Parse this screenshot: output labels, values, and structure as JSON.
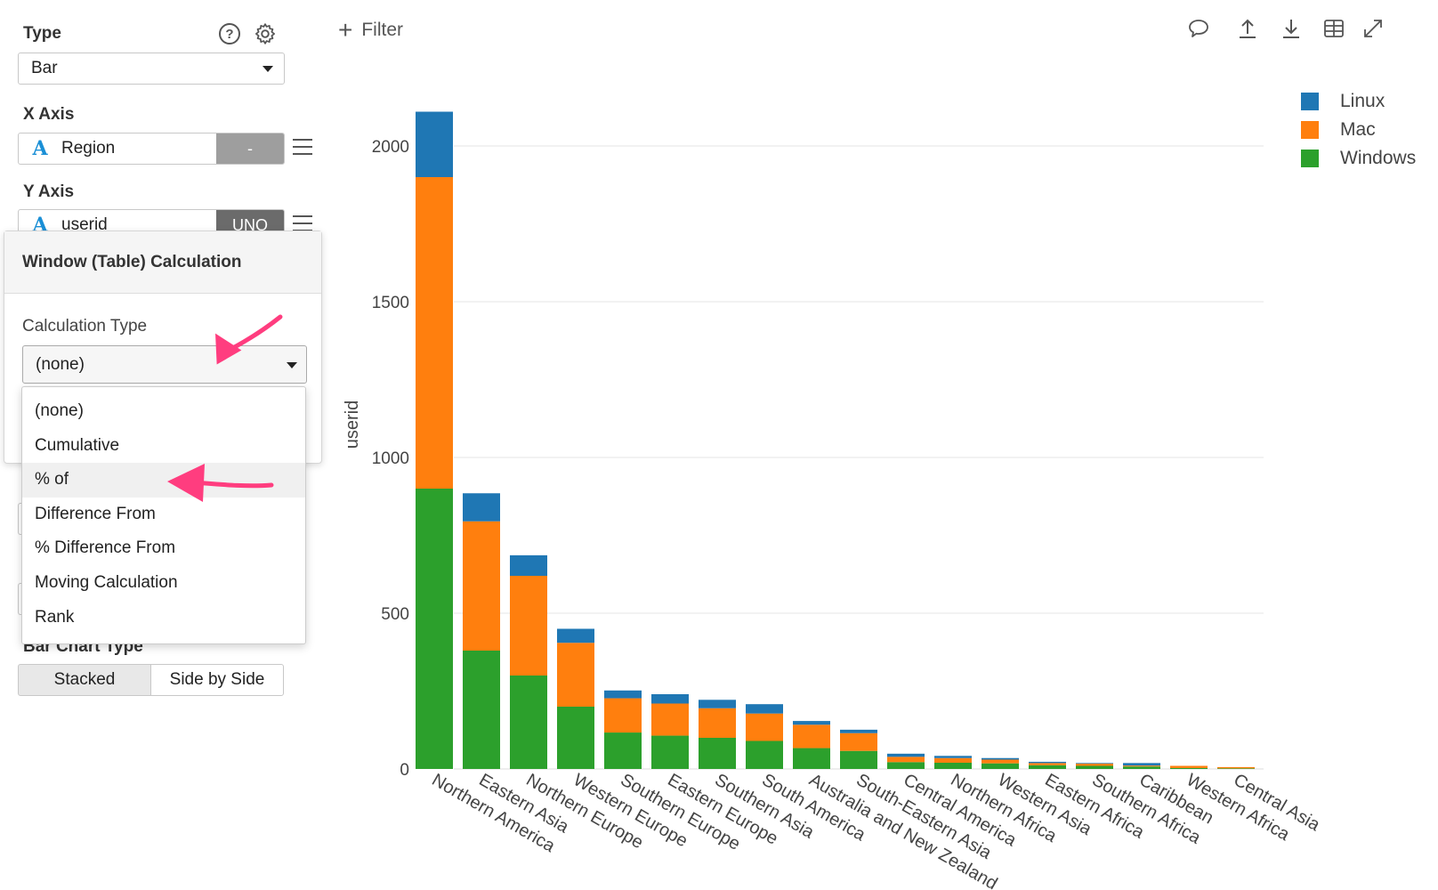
{
  "panel": {
    "type_title": "Type",
    "help_icon": "question-circle-icon",
    "settings_icon": "gear-icon",
    "type_value": "Bar",
    "x_axis_title": "X Axis",
    "x_axis_field": {
      "type_glyph": "A",
      "name": "Region",
      "aggregation": "-"
    },
    "y_axis_title": "Y Axis",
    "y_axis_field": {
      "type_glyph": "A",
      "name": "userid",
      "aggregation": "UNQ"
    },
    "bar_chart_type_title": "Bar Chart Type",
    "bar_chart_type_options": [
      "Stacked",
      "Side by Side"
    ],
    "bar_chart_type_selected": "Stacked"
  },
  "popover": {
    "title": "Window (Table) Calculation",
    "calc_type_label": "Calculation Type",
    "calc_type_value": "(none)",
    "options": [
      "(none)",
      "Cumulative",
      "% of",
      "Difference From",
      "% Difference From",
      "Moving Calculation",
      "Rank"
    ],
    "highlighted_option": "% of"
  },
  "toolbar": {
    "filter_label": "Filter",
    "icons": [
      "comment-icon",
      "upload-icon",
      "download-icon",
      "table-icon",
      "expand-icon"
    ]
  },
  "annotation_arrow_color": "#ff3d7f",
  "colors": {
    "Linux": "#1f77b4",
    "Mac": "#ff7f0e",
    "Windows": "#2ca02c"
  },
  "chart_data": {
    "type": "bar",
    "stacked": true,
    "ylabel": "userid",
    "ylim": [
      0,
      2100
    ],
    "yticks": [
      0,
      500,
      1000,
      1500,
      2000
    ],
    "grid": true,
    "legend_placement": "top-right",
    "categories": [
      "Northern America",
      "Eastern Asia",
      "Northern Europe",
      "Western Europe",
      "Southern Europe",
      "Eastern Europe",
      "Southern Asia",
      "South America",
      "Australia and New Zealand",
      "South-Eastern Asia",
      "Central America",
      "Northern Africa",
      "Western Asia",
      "Eastern Africa",
      "Southern Africa",
      "Caribbean",
      "Western Africa",
      "Central Asia"
    ],
    "series": [
      {
        "name": "Windows",
        "values": [
          900,
          380,
          300,
          200,
          117,
          107,
          100,
          90,
          67,
          58,
          22,
          20,
          18,
          12,
          10,
          8,
          3,
          2
        ]
      },
      {
        "name": "Mac",
        "values": [
          1000,
          415,
          320,
          205,
          110,
          103,
          95,
          88,
          75,
          57,
          17,
          15,
          12,
          7,
          7,
          3,
          7,
          4
        ]
      },
      {
        "name": "Linux",
        "values": [
          210,
          90,
          66,
          45,
          25,
          30,
          27,
          30,
          12,
          11,
          10,
          7,
          5,
          4,
          2,
          8,
          0,
          0
        ]
      }
    ]
  }
}
